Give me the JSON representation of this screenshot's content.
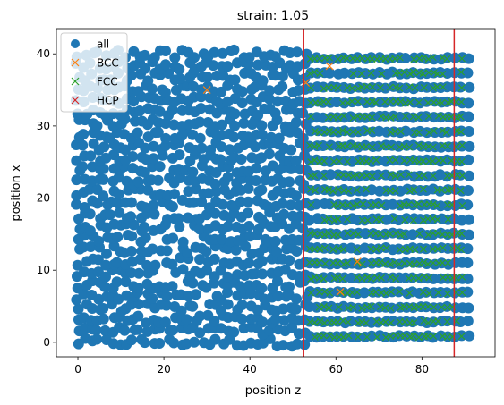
{
  "chart_data": {
    "type": "scatter",
    "title": "strain: 1.05",
    "xlabel": "position z",
    "ylabel": "position x",
    "xlim": [
      -5,
      97
    ],
    "ylim": [
      -2,
      43.5
    ],
    "xticks": [
      0,
      20,
      40,
      60,
      80
    ],
    "yticks": [
      0,
      10,
      20,
      30,
      40
    ],
    "grid": false,
    "legend": {
      "placement": "top-left",
      "entries": [
        "all",
        "BCC",
        "FCC",
        "HCP"
      ]
    },
    "vlines": [
      {
        "x": 52.5,
        "color": "#d62728"
      },
      {
        "x": 87.5,
        "color": "#d62728"
      }
    ],
    "series": [
      {
        "name": "all",
        "marker": "o",
        "color": "#1f77b4",
        "lattice": {
          "x_range": [
            0,
            91
          ],
          "y_range": [
            0,
            41
          ],
          "spacing_x": 1.6,
          "spacing_y": 1.6,
          "ordered_from_x": 54,
          "ordered_row_spacing": 2.03
        },
        "voids": [
          [
            21,
            25
          ],
          [
            24,
            21
          ],
          [
            19,
            18
          ],
          [
            22,
            16
          ],
          [
            26,
            15
          ],
          [
            18,
            14
          ],
          [
            22,
            12
          ],
          [
            20,
            10
          ],
          [
            27,
            11
          ],
          [
            24,
            8
          ],
          [
            29,
            6
          ],
          [
            27,
            18
          ]
        ]
      },
      {
        "name": "BCC",
        "marker": "x",
        "color": "#ff7f0e",
        "x": [
          30,
          53,
          58.5,
          61,
          65
        ],
        "y": [
          35,
          36,
          38.3,
          7,
          11.2
        ]
      },
      {
        "name": "FCC",
        "marker": "x",
        "color": "#2ca02c",
        "x_range": [
          54,
          90
        ],
        "y_range": [
          0.8,
          40.4
        ],
        "row_spacing": 2.03,
        "point_spacing": 1.1
      },
      {
        "name": "HCP",
        "marker": "x",
        "color": "#d62728",
        "x": [],
        "y": []
      }
    ]
  }
}
